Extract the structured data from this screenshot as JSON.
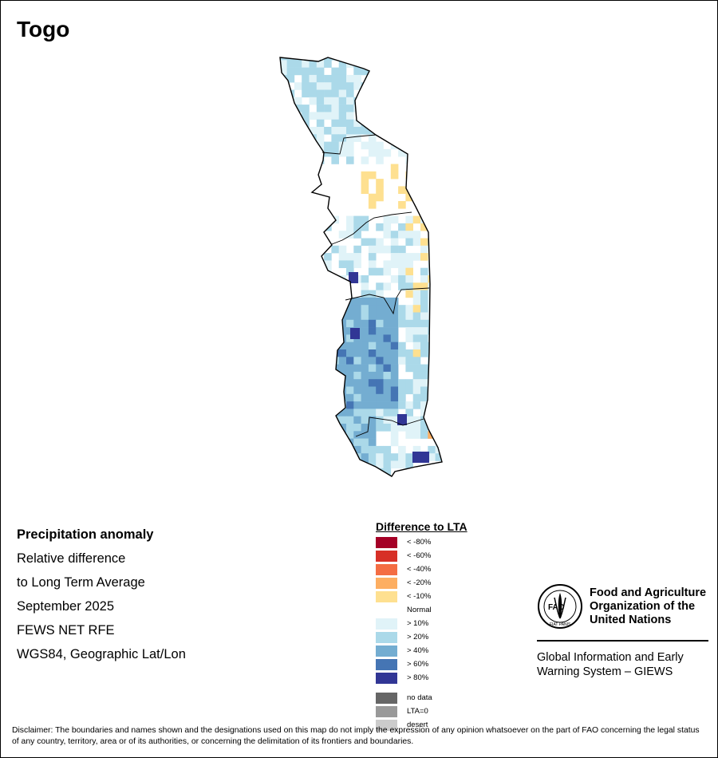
{
  "title": "Togo",
  "info": {
    "heading": "Precipitation anomaly",
    "line1": "Relative difference",
    "line2": "to Long Term Average",
    "period": "September 2025",
    "source": "FEWS NET RFE",
    "projection": "WGS84, Geographic Lat/Lon"
  },
  "legend": {
    "title": "Difference to LTA",
    "items": [
      {
        "label": "< -80%",
        "color": "#a50026"
      },
      {
        "label": "< -60%",
        "color": "#d73027"
      },
      {
        "label": "< -40%",
        "color": "#f46d43"
      },
      {
        "label": "< -20%",
        "color": "#fdae61"
      },
      {
        "label": "< -10%",
        "color": "#fee090"
      },
      {
        "label": "Normal",
        "color": ""
      },
      {
        "label": "> 10%",
        "color": "#e0f3f8"
      },
      {
        "label": "> 20%",
        "color": "#abd9e9"
      },
      {
        "label": "> 40%",
        "color": "#74add1"
      },
      {
        "label": "> 60%",
        "color": "#4575b4"
      },
      {
        "label": "> 80%",
        "color": "#313695"
      }
    ],
    "special": [
      {
        "label": "no data",
        "color": "#666666"
      },
      {
        "label": "LTA=0",
        "color": "#999999"
      },
      {
        "label": "desert",
        "color": "#cccccc"
      }
    ]
  },
  "organization": {
    "name": "Food and Agriculture Organization of the United Nations",
    "logo_letters": "FAO",
    "logo_motto": "FIAT PANIS",
    "program": "Global Information and Early Warning System – GIEWS"
  },
  "disclaimer": "Disclaimer: The boundaries and names shown and the designations used on this map do not imply the expression of any opinion whatsoever on the part of FAO concerning the legal status of any country, territory, area or of its authorities, or concerning the delimitation of its frontiers and boundaries."
}
